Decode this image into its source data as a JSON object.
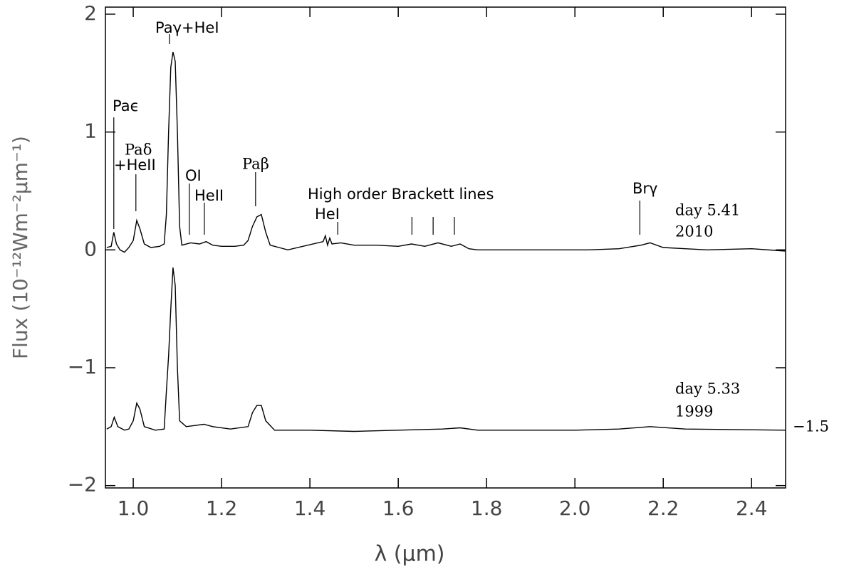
{
  "chart_data": {
    "type": "line",
    "xlabel": "λ (μm)",
    "ylabel": "Flux (10⁻¹²Wm⁻²μm⁻¹)",
    "xlim": [
      0.937,
      2.477
    ],
    "ylim": [
      -2.02,
      2.06
    ],
    "xticks": [
      {
        "value": 1.0,
        "label": "1.0"
      },
      {
        "value": 1.2,
        "label": "1.2"
      },
      {
        "value": 1.4,
        "label": "1.4"
      },
      {
        "value": 1.6,
        "label": "1.6"
      },
      {
        "value": 1.8,
        "label": "1.8"
      },
      {
        "value": 2.0,
        "label": "2.0"
      },
      {
        "value": 2.2,
        "label": "2.2"
      },
      {
        "value": 2.4,
        "label": "2.4"
      }
    ],
    "yticks": [
      {
        "value": -2,
        "label": "−2"
      },
      {
        "value": -1,
        "label": "−1"
      },
      0,
      1,
      2
    ],
    "series": [
      {
        "name": "day 5.41 2010",
        "color": "#000000",
        "x": [
          0.94,
          0.95,
          0.956,
          0.962,
          0.97,
          0.98,
          0.99,
          1.0,
          1.008,
          1.015,
          1.025,
          1.04,
          1.06,
          1.07,
          1.075,
          1.08,
          1.085,
          1.09,
          1.095,
          1.1,
          1.105,
          1.11,
          1.13,
          1.15,
          1.165,
          1.18,
          1.2,
          1.23,
          1.25,
          1.26,
          1.27,
          1.28,
          1.29,
          1.3,
          1.31,
          1.33,
          1.35,
          1.43,
          1.435,
          1.44,
          1.445,
          1.45,
          1.47,
          1.5,
          1.55,
          1.6,
          1.63,
          1.66,
          1.69,
          1.72,
          1.74,
          1.76,
          1.78,
          1.8,
          2.03,
          2.1,
          2.15,
          2.17,
          2.2,
          2.25,
          2.3,
          2.4,
          2.477
        ],
        "values": [
          0.02,
          0.03,
          0.15,
          0.05,
          0.0,
          -0.02,
          0.02,
          0.08,
          0.25,
          0.18,
          0.05,
          0.02,
          0.03,
          0.05,
          0.3,
          1.0,
          1.55,
          1.68,
          1.6,
          1.0,
          0.2,
          0.04,
          0.06,
          0.05,
          0.07,
          0.04,
          0.03,
          0.03,
          0.04,
          0.08,
          0.2,
          0.28,
          0.3,
          0.15,
          0.04,
          0.02,
          0.0,
          0.07,
          0.12,
          0.04,
          0.1,
          0.05,
          0.06,
          0.04,
          0.04,
          0.03,
          0.05,
          0.03,
          0.06,
          0.03,
          0.05,
          0.01,
          0.0,
          0.0,
          0.0,
          0.01,
          0.04,
          0.06,
          0.02,
          0.01,
          0.0,
          0.01,
          -0.01
        ]
      },
      {
        "name": "day 5.33 1999",
        "color": "#000000",
        "x": [
          0.94,
          0.95,
          0.957,
          0.965,
          0.98,
          0.99,
          1.0,
          1.008,
          1.015,
          1.025,
          1.05,
          1.07,
          1.075,
          1.08,
          1.085,
          1.09,
          1.095,
          1.1,
          1.105,
          1.12,
          1.14,
          1.16,
          1.18,
          1.22,
          1.26,
          1.27,
          1.28,
          1.29,
          1.3,
          1.32,
          1.4,
          1.5,
          1.6,
          1.7,
          1.74,
          1.78,
          2.0,
          2.1,
          2.17,
          2.25,
          2.477
        ],
        "values": [
          -1.52,
          -1.5,
          -1.42,
          -1.5,
          -1.53,
          -1.52,
          -1.45,
          -1.3,
          -1.35,
          -1.5,
          -1.53,
          -1.52,
          -1.2,
          -0.9,
          -0.5,
          -0.15,
          -0.3,
          -1.0,
          -1.45,
          -1.5,
          -1.49,
          -1.48,
          -1.5,
          -1.52,
          -1.5,
          -1.38,
          -1.32,
          -1.32,
          -1.45,
          -1.53,
          -1.53,
          -1.54,
          -1.53,
          -1.52,
          -1.51,
          -1.53,
          -1.53,
          -1.52,
          -1.5,
          -1.52,
          -1.53
        ]
      }
    ],
    "series_labels": [
      [
        "day 5.41",
        "2010"
      ],
      [
        "day 5.33",
        "1999"
      ]
    ],
    "offset_label": "−1.5",
    "annotations": [
      {
        "text": "Paϵ",
        "x": 0.956
      },
      {
        "text": "Paδ",
        "x": 1.006
      },
      {
        "text": "+HeII",
        "x": 1.006
      },
      {
        "text": "Paγ+HeI",
        "x": 1.082
      },
      {
        "text": "OI",
        "x": 1.127
      },
      {
        "text": "HeII",
        "x": 1.161
      },
      {
        "text": "Paβ",
        "x": 1.277
      },
      {
        "text": "HeI",
        "x": 1.463
      },
      {
        "text": "High order Brackett lines",
        "x": [
          1.631,
          1.679,
          1.727
        ]
      },
      {
        "text": "Brγ",
        "x": 2.147
      }
    ]
  }
}
